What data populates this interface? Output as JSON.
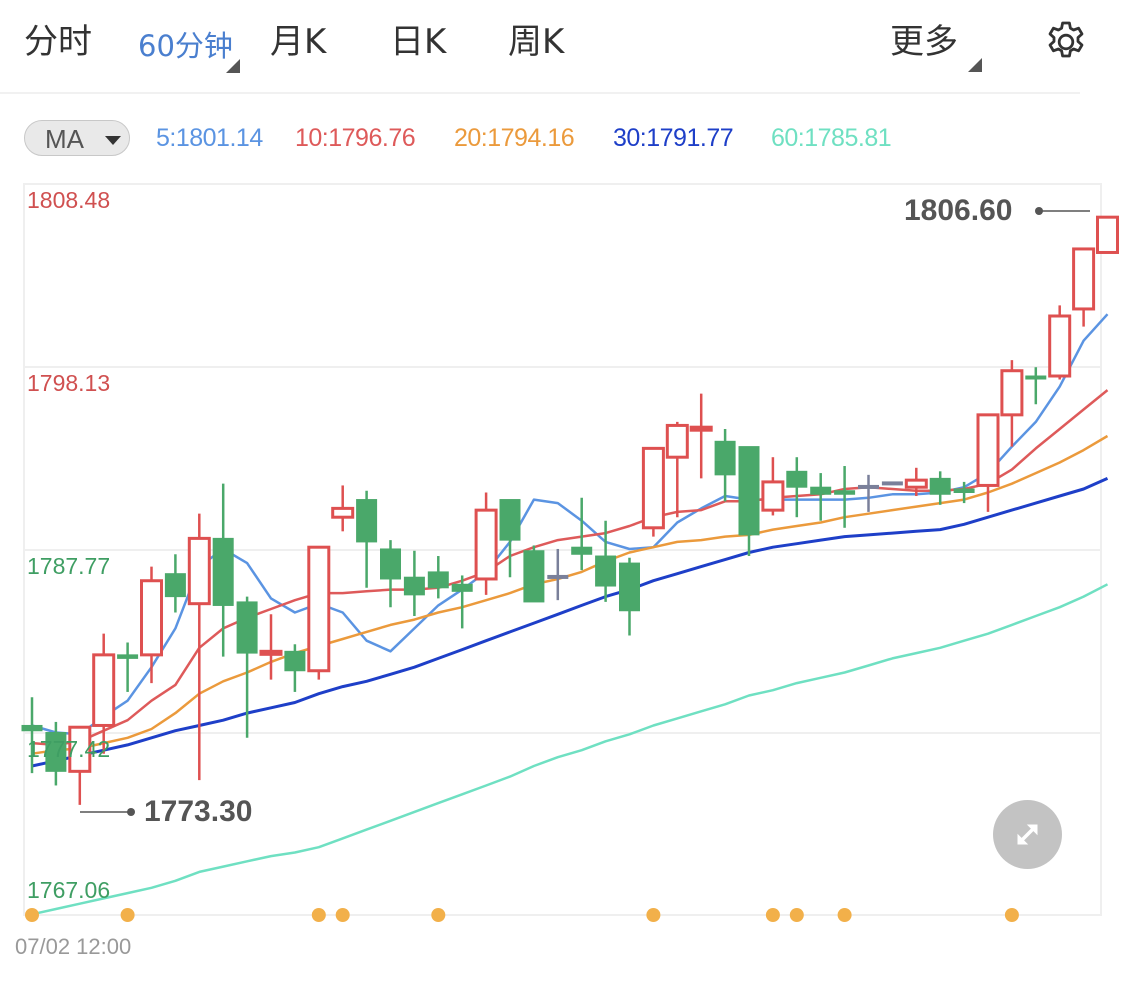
{
  "tabs": {
    "items": [
      {
        "label": "分时",
        "active": false
      },
      {
        "label": "60分钟",
        "active": true
      },
      {
        "label": "月K",
        "active": false
      },
      {
        "label": "日K",
        "active": false
      },
      {
        "label": "周K",
        "active": false
      }
    ],
    "more_label": "更多",
    "settings_icon": "gear-icon"
  },
  "indicator": {
    "selector_label": "MA",
    "values": [
      {
        "text": "5:1801.14",
        "color": "#5b94e2"
      },
      {
        "text": "10:1796.76",
        "color": "#de5a5a"
      },
      {
        "text": "20:1794.16",
        "color": "#eb9a3c"
      },
      {
        "text": "30:1791.77",
        "color": "#1e3fc8"
      },
      {
        "text": "60:1785.81",
        "color": "#6fe0c2"
      }
    ]
  },
  "colors": {
    "up": "#de5050",
    "down": "#4aa86a",
    "flat": "#7a809a",
    "grid": "#efefef",
    "event_dot": "#f2b04a",
    "ylabel_up": "#d05050",
    "ylabel_down": "#3f9e63"
  },
  "chart_data": {
    "type": "candlestick",
    "title": "",
    "interval": "60分钟",
    "xlabel": "",
    "ylabel": "",
    "ylim": [
      1767.06,
      1808.48
    ],
    "y_ticks": [
      {
        "value": "1808.48",
        "color": "up"
      },
      {
        "value": "1798.13",
        "color": "up"
      },
      {
        "value": "1787.77",
        "color": "down"
      },
      {
        "value": "1777.42",
        "color": "down"
      },
      {
        "value": "1767.06",
        "color": "down"
      }
    ],
    "x_ticks": [
      "07/02 12:00"
    ],
    "grid": true,
    "annotations": [
      {
        "label": "1806.60",
        "type": "max_high"
      },
      {
        "label": "1773.30",
        "type": "min_low"
      }
    ],
    "candles": [
      {
        "o": 1777.8,
        "h": 1779.4,
        "c": 1777.5,
        "l": 1775.1
      },
      {
        "o": 1777.4,
        "h": 1778.0,
        "c": 1775.2,
        "l": 1774.4
      },
      {
        "o": 1775.2,
        "h": 1777.7,
        "c": 1777.7,
        "l": 1773.3
      },
      {
        "o": 1777.8,
        "h": 1783.0,
        "c": 1781.8,
        "l": 1776.2
      },
      {
        "o": 1781.8,
        "h": 1782.5,
        "c": 1781.6,
        "l": 1779.7
      },
      {
        "o": 1781.8,
        "h": 1786.8,
        "c": 1786.0,
        "l": 1780.2
      },
      {
        "o": 1786.4,
        "h": 1787.5,
        "c": 1785.1,
        "l": 1784.2
      },
      {
        "o": 1784.7,
        "h": 1789.8,
        "c": 1788.4,
        "l": 1774.7
      },
      {
        "o": 1788.4,
        "h": 1791.5,
        "c": 1784.6,
        "l": 1781.7
      },
      {
        "o": 1784.8,
        "h": 1785.1,
        "c": 1781.9,
        "l": 1777.1
      },
      {
        "o": 1781.9,
        "h": 1784.1,
        "c": 1782.0,
        "l": 1780.4
      },
      {
        "o": 1782.0,
        "h": 1782.4,
        "c": 1780.9,
        "l": 1779.7
      },
      {
        "o": 1780.9,
        "h": 1787.9,
        "c": 1787.9,
        "l": 1780.4
      },
      {
        "o": 1789.6,
        "h": 1791.4,
        "c": 1790.1,
        "l": 1788.8
      },
      {
        "o": 1790.6,
        "h": 1791.1,
        "c": 1788.2,
        "l": 1785.6
      },
      {
        "o": 1787.8,
        "h": 1788.3,
        "c": 1786.1,
        "l": 1784.5
      },
      {
        "o": 1786.2,
        "h": 1787.7,
        "c": 1785.2,
        "l": 1784.0
      },
      {
        "o": 1786.5,
        "h": 1787.4,
        "c": 1785.6,
        "l": 1785.0
      },
      {
        "o": 1785.8,
        "h": 1786.3,
        "c": 1785.4,
        "l": 1783.3
      },
      {
        "o": 1786.1,
        "h": 1791.0,
        "c": 1790.0,
        "l": 1785.2
      },
      {
        "o": 1790.6,
        "h": 1790.6,
        "c": 1788.3,
        "l": 1786.2
      },
      {
        "o": 1787.7,
        "h": 1788.0,
        "c": 1784.8,
        "l": 1785.5
      },
      {
        "o": 1786.3,
        "h": 1787.8,
        "c": 1786.3,
        "l": 1784.9
      },
      {
        "o": 1787.9,
        "h": 1790.7,
        "c": 1787.5,
        "l": 1786.6
      },
      {
        "o": 1787.4,
        "h": 1789.4,
        "c": 1785.7,
        "l": 1784.8
      },
      {
        "o": 1787.0,
        "h": 1787.3,
        "c": 1784.3,
        "l": 1782.9
      },
      {
        "o": 1789.0,
        "h": 1792.0,
        "c": 1793.5,
        "l": 1788.5
      },
      {
        "o": 1793.0,
        "h": 1795.0,
        "c": 1794.8,
        "l": 1789.6
      },
      {
        "o": 1794.6,
        "h": 1796.6,
        "c": 1794.7,
        "l": 1791.8
      },
      {
        "o": 1793.9,
        "h": 1794.6,
        "c": 1792.0,
        "l": 1790.5
      },
      {
        "o": 1793.6,
        "h": 1793.6,
        "c": 1788.6,
        "l": 1787.4
      },
      {
        "o": 1790.0,
        "h": 1793.0,
        "c": 1791.6,
        "l": 1789.7
      },
      {
        "o": 1792.2,
        "h": 1793.0,
        "c": 1791.3,
        "l": 1789.6
      },
      {
        "o": 1791.3,
        "h": 1792.1,
        "c": 1790.9,
        "l": 1789.4
      },
      {
        "o": 1791.1,
        "h": 1792.5,
        "c": 1790.9,
        "l": 1789.0
      },
      {
        "o": 1791.4,
        "h": 1792.0,
        "c": 1791.4,
        "l": 1789.9
      },
      {
        "o": 1791.6,
        "h": 1791.6,
        "c": 1791.6,
        "l": 1791.6
      },
      {
        "o": 1791.3,
        "h": 1792.4,
        "c": 1791.7,
        "l": 1790.8
      },
      {
        "o": 1791.8,
        "h": 1792.2,
        "c": 1790.9,
        "l": 1790.3
      },
      {
        "o": 1791.2,
        "h": 1791.6,
        "c": 1791.0,
        "l": 1790.4
      },
      {
        "o": 1791.4,
        "h": 1795.2,
        "c": 1795.4,
        "l": 1789.9
      },
      {
        "o": 1795.4,
        "h": 1798.5,
        "c": 1797.9,
        "l": 1793.6
      },
      {
        "o": 1797.6,
        "h": 1798.1,
        "c": 1797.5,
        "l": 1796.0
      },
      {
        "o": 1797.6,
        "h": 1801.6,
        "c": 1801.0,
        "l": 1797.4
      },
      {
        "o": 1801.4,
        "h": 1803.8,
        "c": 1804.8,
        "l": 1800.4
      },
      {
        "o": 1804.6,
        "h": 1806.6,
        "c": 1806.6,
        "l": 1804.6
      }
    ],
    "series": [
      {
        "name": "MA5",
        "color": "#5b94e2",
        "values": [
          1777.8,
          1777.4,
          1777.3,
          1778.3,
          1779.2,
          1781.1,
          1783.3,
          1786.8,
          1787.8,
          1787.0,
          1785.0,
          1784.2,
          1784.7,
          1784.2,
          1782.6,
          1782.0,
          1783.3,
          1784.6,
          1785.5,
          1786.5,
          1788.2,
          1790.6,
          1790.4,
          1789.4,
          1788.2,
          1787.8,
          1787.9,
          1789.3,
          1790.1,
          1790.8,
          1790.6,
          1790.6,
          1790.6,
          1790.6,
          1790.6,
          1790.7,
          1790.9,
          1790.9,
          1791.0,
          1791.3,
          1792.1,
          1793.6,
          1795.0,
          1797.0,
          1799.6,
          1801.1
        ]
      },
      {
        "name": "MA10",
        "color": "#de5a5a",
        "values": [
          1776.8,
          1776.7,
          1776.9,
          1777.5,
          1778.1,
          1779.2,
          1780.1,
          1782.2,
          1783.3,
          1783.9,
          1784.4,
          1784.9,
          1785.3,
          1785.3,
          1785.4,
          1785.5,
          1785.5,
          1785.6,
          1786.0,
          1786.5,
          1787.4,
          1787.9,
          1788.3,
          1788.5,
          1788.7,
          1789.1,
          1789.6,
          1789.9,
          1790.0,
          1790.5,
          1790.5,
          1790.7,
          1790.8,
          1790.9,
          1791.2,
          1791.3,
          1791.2,
          1791.1,
          1791.1,
          1791.2,
          1791.5,
          1792.3,
          1793.5,
          1794.6,
          1795.7,
          1796.8
        ]
      },
      {
        "name": "MA20",
        "color": "#eb9a3c",
        "values": [
          1776.2,
          1776.4,
          1776.5,
          1776.8,
          1777.1,
          1777.6,
          1778.5,
          1779.6,
          1780.3,
          1780.8,
          1781.4,
          1781.9,
          1782.3,
          1782.7,
          1783.1,
          1783.5,
          1783.8,
          1784.2,
          1784.5,
          1784.9,
          1785.3,
          1785.8,
          1786.1,
          1786.5,
          1787.1,
          1787.6,
          1787.9,
          1788.2,
          1788.3,
          1788.5,
          1788.6,
          1788.9,
          1789.1,
          1789.3,
          1789.6,
          1789.8,
          1790.0,
          1790.2,
          1790.4,
          1790.6,
          1791.0,
          1791.5,
          1792.1,
          1792.7,
          1793.4,
          1794.2
        ]
      },
      {
        "name": "MA30",
        "color": "#1e3fc8",
        "values": [
          1775.5,
          1775.8,
          1776.1,
          1776.4,
          1776.7,
          1777.1,
          1777.5,
          1777.8,
          1778.1,
          1778.5,
          1778.8,
          1779.1,
          1779.6,
          1780.0,
          1780.3,
          1780.7,
          1781.1,
          1781.6,
          1782.1,
          1782.6,
          1783.1,
          1783.6,
          1784.1,
          1784.6,
          1785.1,
          1785.5,
          1786.0,
          1786.4,
          1786.8,
          1787.2,
          1787.6,
          1787.9,
          1788.1,
          1788.3,
          1788.5,
          1788.6,
          1788.7,
          1788.8,
          1788.9,
          1789.2,
          1789.6,
          1790.0,
          1790.4,
          1790.8,
          1791.2,
          1791.8
        ]
      },
      {
        "name": "MA60",
        "color": "#6fe0c2",
        "values": [
          1767.1,
          1767.4,
          1767.7,
          1768.0,
          1768.3,
          1768.6,
          1769.0,
          1769.5,
          1769.8,
          1770.1,
          1770.4,
          1770.6,
          1770.9,
          1771.4,
          1771.9,
          1772.4,
          1772.9,
          1773.4,
          1773.9,
          1774.4,
          1774.9,
          1775.5,
          1776.0,
          1776.4,
          1776.9,
          1777.3,
          1777.8,
          1778.2,
          1778.6,
          1779.0,
          1779.5,
          1779.8,
          1780.2,
          1780.5,
          1780.8,
          1781.2,
          1781.6,
          1781.9,
          1782.2,
          1782.6,
          1783.0,
          1783.5,
          1784.0,
          1784.5,
          1785.1,
          1785.8
        ]
      }
    ],
    "event_markers_at_index": [
      0,
      4,
      12,
      13,
      17,
      26,
      31,
      32,
      34,
      41
    ]
  },
  "bottom": {
    "x_axis_label": "07/02 12:00",
    "fullscreen_icon": "expand-icon"
  }
}
